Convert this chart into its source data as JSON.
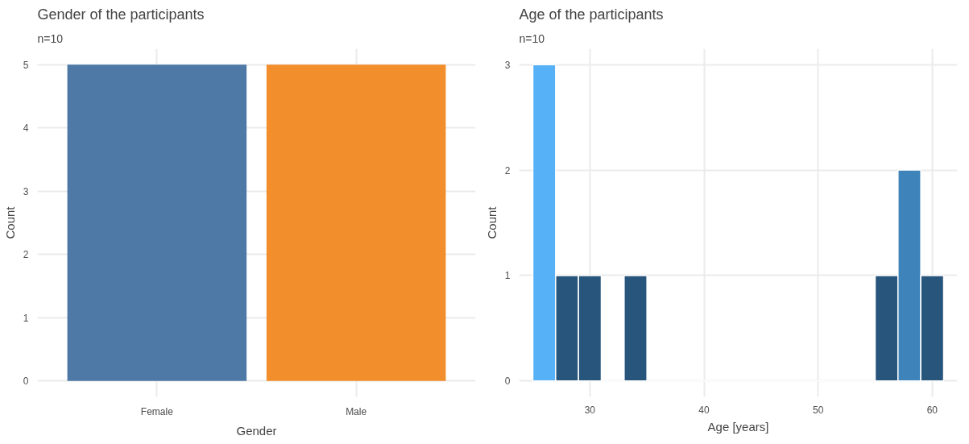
{
  "chart_data": [
    {
      "type": "bar",
      "title": "Gender of the participants",
      "subtitle": "n=10",
      "xlabel": "Gender",
      "ylabel": "Count",
      "categories": [
        "Female",
        "Male"
      ],
      "values": [
        5,
        5
      ],
      "colors": [
        "#4e79a7",
        "#f28e2b"
      ],
      "ylim": [
        -0.25,
        5.25
      ],
      "yticks": [
        0,
        1,
        2,
        3,
        4,
        5
      ],
      "grid": true
    },
    {
      "type": "histogram",
      "title": "Age of the participants",
      "subtitle": "n=10",
      "xlabel": "Age [years]",
      "ylabel": "Count",
      "bins": [
        25,
        27,
        29,
        31,
        33,
        35,
        37,
        39,
        41,
        43,
        45,
        47,
        49,
        51,
        53,
        55,
        57,
        59,
        61
      ],
      "values": [
        3,
        1,
        1,
        0,
        1,
        0,
        0,
        0,
        0,
        0,
        0,
        0,
        0,
        0,
        0,
        1,
        2,
        1
      ],
      "colors": [
        "#56b1f7",
        "#27557c",
        "#27557c",
        "#132b43",
        "#27557c",
        "#132b43",
        "#132b43",
        "#132b43",
        "#132b43",
        "#132b43",
        "#132b43",
        "#132b43",
        "#132b43",
        "#132b43",
        "#132b43",
        "#27557c",
        "#3e84bb",
        "#27557c"
      ],
      "xlim": [
        23.8,
        62.2
      ],
      "xticks": [
        30,
        40,
        50,
        60
      ],
      "ylim": [
        -0.15,
        3.15
      ],
      "yticks": [
        0,
        1,
        2,
        3
      ],
      "grid": true
    }
  ]
}
